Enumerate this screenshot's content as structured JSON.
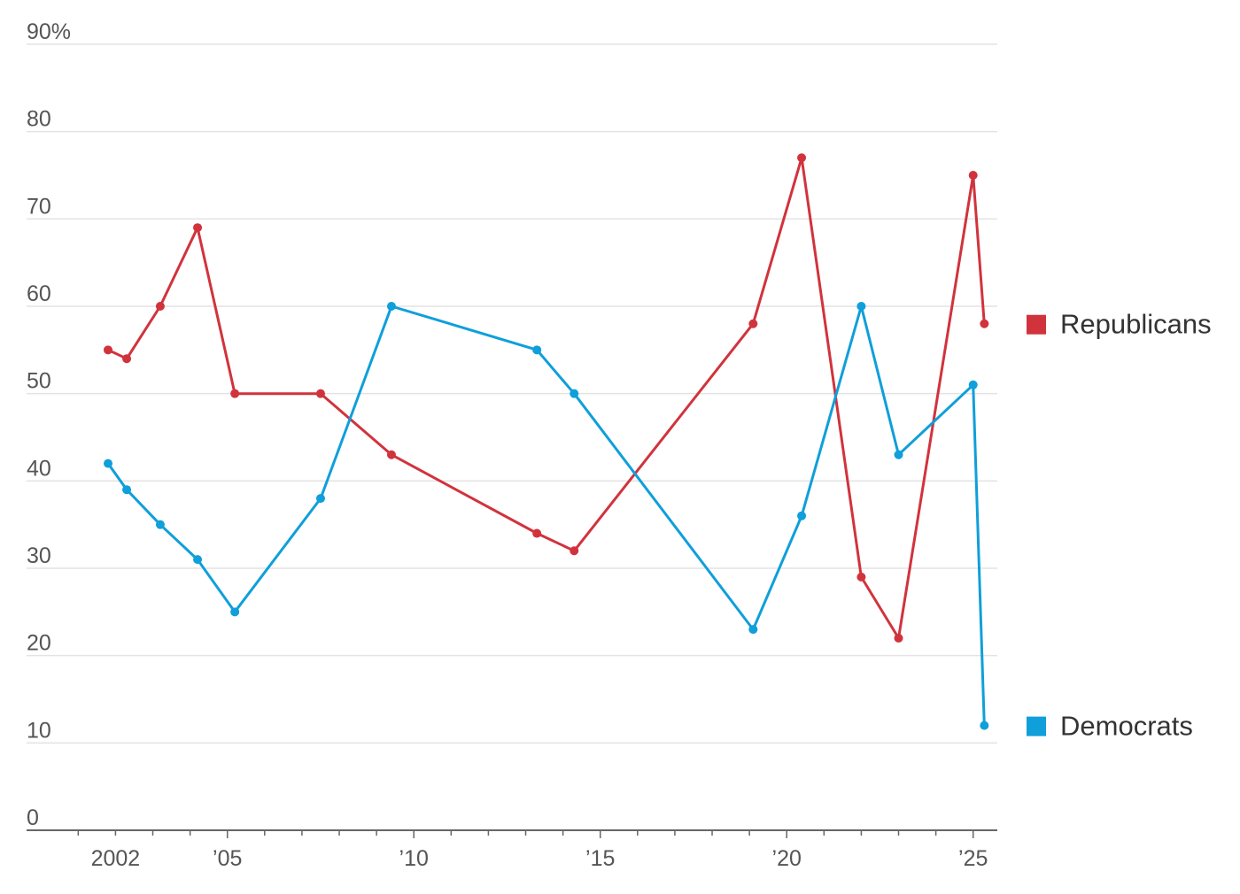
{
  "chart_data": {
    "type": "line",
    "title": "",
    "xlabel": "",
    "ylabel": "",
    "ylim": [
      0,
      90
    ],
    "xlim": [
      2001,
      2025.6
    ],
    "y_ticks": [
      {
        "value": 0,
        "label": "0"
      },
      {
        "value": 10,
        "label": "10"
      },
      {
        "value": 20,
        "label": "20"
      },
      {
        "value": 30,
        "label": "30"
      },
      {
        "value": 40,
        "label": "40"
      },
      {
        "value": 50,
        "label": "50"
      },
      {
        "value": 60,
        "label": "60"
      },
      {
        "value": 70,
        "label": "70"
      },
      {
        "value": 80,
        "label": "80"
      },
      {
        "value": 90,
        "label": "90%"
      }
    ],
    "x_ticks": [
      {
        "value": 2002,
        "label": "2002"
      },
      {
        "value": 2005,
        "label": "’05"
      },
      {
        "value": 2010,
        "label": "’10"
      },
      {
        "value": 2015,
        "label": "’15"
      },
      {
        "value": 2020,
        "label": "’20"
      },
      {
        "value": 2025,
        "label": "’25"
      }
    ],
    "grid": true,
    "legend": "right",
    "series": [
      {
        "name": "Republicans",
        "color": "#d1333c",
        "points": [
          {
            "x": 2001.8,
            "y": 55
          },
          {
            "x": 2002.3,
            "y": 54
          },
          {
            "x": 2003.2,
            "y": 60
          },
          {
            "x": 2004.2,
            "y": 69
          },
          {
            "x": 2005.2,
            "y": 50
          },
          {
            "x": 2007.5,
            "y": 50
          },
          {
            "x": 2009.4,
            "y": 43
          },
          {
            "x": 2013.3,
            "y": 34
          },
          {
            "x": 2014.3,
            "y": 32
          },
          {
            "x": 2019.1,
            "y": 58
          },
          {
            "x": 2020.4,
            "y": 77
          },
          {
            "x": 2022.0,
            "y": 29
          },
          {
            "x": 2023.0,
            "y": 22
          },
          {
            "x": 2025.0,
            "y": 75
          },
          {
            "x": 2025.3,
            "y": 58
          }
        ]
      },
      {
        "name": "Democrats",
        "color": "#0f9fda",
        "points": [
          {
            "x": 2001.8,
            "y": 42
          },
          {
            "x": 2002.3,
            "y": 39
          },
          {
            "x": 2003.2,
            "y": 35
          },
          {
            "x": 2004.2,
            "y": 31
          },
          {
            "x": 2005.2,
            "y": 25
          },
          {
            "x": 2007.5,
            "y": 38
          },
          {
            "x": 2009.4,
            "y": 60
          },
          {
            "x": 2013.3,
            "y": 55
          },
          {
            "x": 2014.3,
            "y": 50
          },
          {
            "x": 2019.1,
            "y": 23
          },
          {
            "x": 2020.4,
            "y": 36
          },
          {
            "x": 2022.0,
            "y": 60
          },
          {
            "x": 2023.0,
            "y": 43
          },
          {
            "x": 2025.0,
            "y": 51
          },
          {
            "x": 2025.3,
            "y": 12
          }
        ]
      }
    ],
    "legend_entries": [
      {
        "label": "Republicans",
        "color": "#d1333c",
        "anchor_value": 58
      },
      {
        "label": "Democrats",
        "color": "#0f9fda",
        "anchor_value": 12
      }
    ]
  }
}
